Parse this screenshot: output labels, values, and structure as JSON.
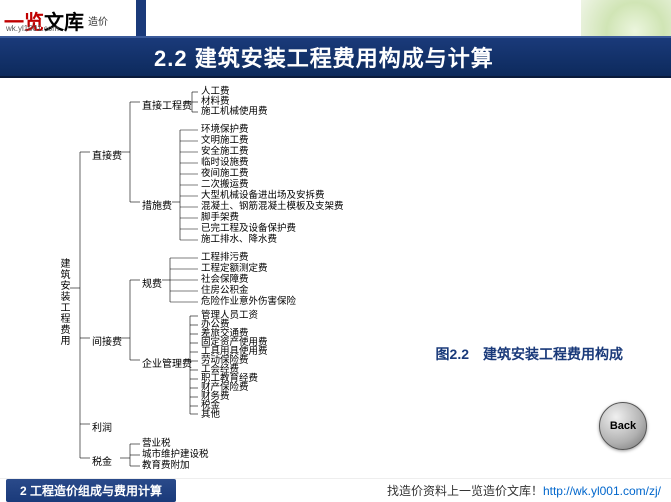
{
  "logo": {
    "red": "一览",
    "black": "文库",
    "sub": "造价",
    "url": "wk.yl1001.com"
  },
  "header": {
    "title": "2.2 建筑安装工程费用构成与计算"
  },
  "caption": "图2.2　建筑安装工程费用构成",
  "back": "Back",
  "footer": {
    "left": "2 工程造价组成与费用计算",
    "right_text": "找造价资料上一览造价文库！",
    "right_url": "http://wk.yl001.com/zj/"
  },
  "tree": {
    "root": "建筑安装工程费用",
    "l1": {
      "direct": "直接费",
      "indirect": "间接费",
      "profit": "利润",
      "tax": "税金"
    },
    "l2": {
      "direct_eng": "直接工程费",
      "measure": "措施费",
      "gui": "规费",
      "ent": "企业管理费"
    },
    "leaves": {
      "de": [
        "人工费",
        "材料费",
        "施工机械使用费"
      ],
      "ms": [
        "环境保护费",
        "文明施工费",
        "安全施工费",
        "临时设施费",
        "夜间施工费",
        "二次搬运费",
        "大型机械设备进出场及安拆费",
        "混凝土、钢筋混凝土模板及支架费",
        "脚手架费",
        "已完工程及设备保护费",
        "施工排水、降水费"
      ],
      "gf": [
        "工程排污费",
        "工程定额测定费",
        "社会保障费",
        "住房公积金",
        "危险作业意外伤害保险"
      ],
      "em": [
        "管理人员工资",
        "办公费",
        "差旅交通费",
        "固定资产使用费",
        "工具用具使用费",
        "劳动保险费",
        "工会经费",
        "职工教育经费",
        "财产保险费",
        "财务费",
        "税金",
        "其他"
      ],
      "tx": [
        "营业税",
        "城市维护建设税",
        "教育费附加"
      ]
    }
  },
  "colors": {
    "header_bg": "#1a3a7a",
    "accent_red": "#c00000",
    "link": "#0066cc"
  }
}
